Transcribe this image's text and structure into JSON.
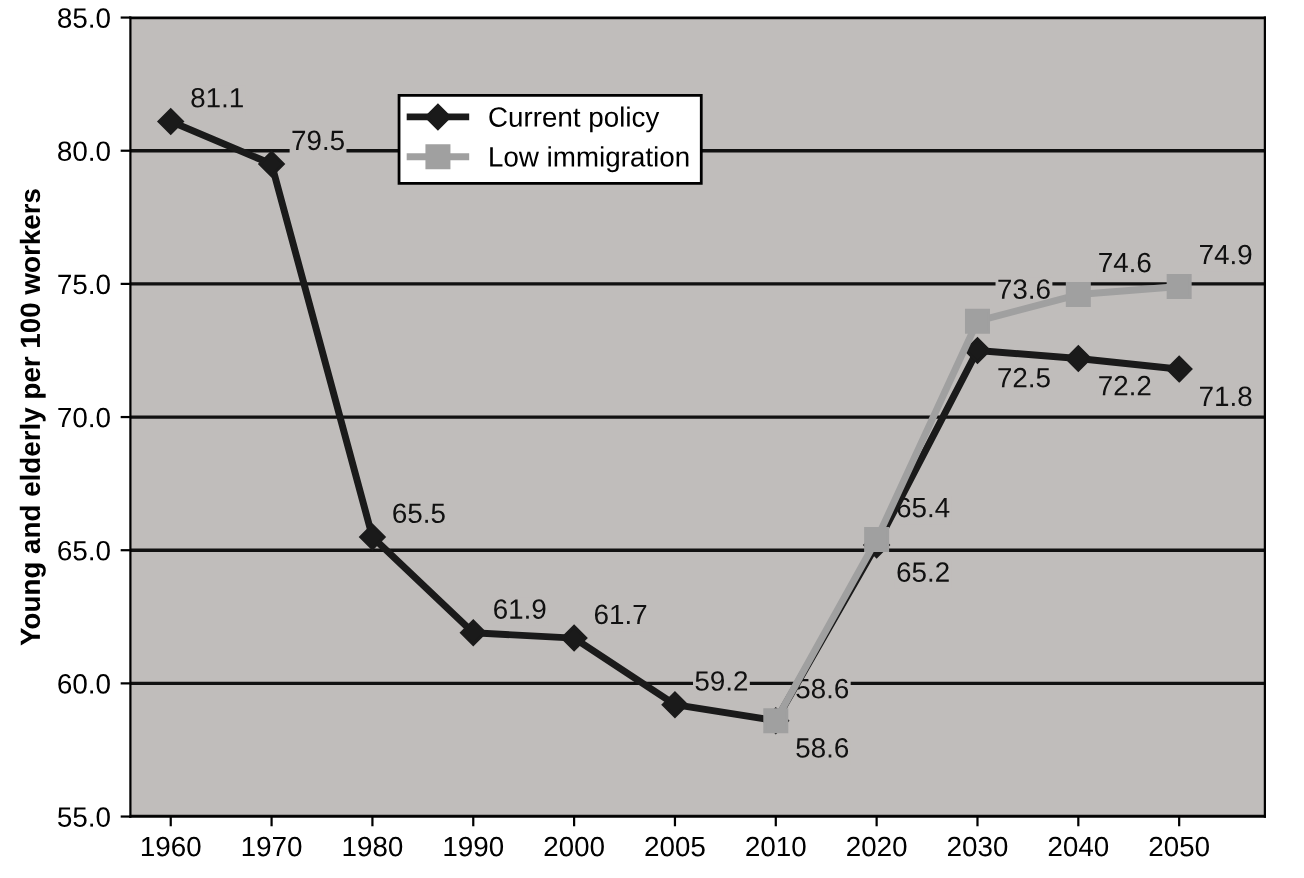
{
  "chart_data": {
    "type": "line",
    "ylabel": "Young and elderly per 100 workers",
    "categories": [
      "1960",
      "1970",
      "1980",
      "1990",
      "2000",
      "2005",
      "2010",
      "2020",
      "2030",
      "2040",
      "2050"
    ],
    "series": [
      {
        "name": "Current policy",
        "color": "#1a1a1a",
        "marker": "diamond",
        "values": [
          81.1,
          79.5,
          65.5,
          61.9,
          61.7,
          59.2,
          58.6,
          65.2,
          72.5,
          72.2,
          71.8
        ]
      },
      {
        "name": "Low immigration",
        "color": "#a0a0a0",
        "marker": "square",
        "values": [
          null,
          null,
          null,
          null,
          null,
          null,
          58.6,
          65.4,
          73.6,
          74.6,
          74.9
        ]
      }
    ],
    "ylim": [
      55,
      85
    ],
    "yticks": [
      {
        "value": 55,
        "label": "55.0"
      },
      {
        "value": 60,
        "label": "60.0"
      },
      {
        "value": 65,
        "label": "65.0"
      },
      {
        "value": 70,
        "label": "70.0"
      },
      {
        "value": 75,
        "label": "75.0"
      },
      {
        "value": 80,
        "label": "80.0"
      },
      {
        "value": 85,
        "label": "85.0"
      }
    ],
    "grid": "y",
    "legend": "top",
    "data_labels": true,
    "line_style": "solid"
  }
}
